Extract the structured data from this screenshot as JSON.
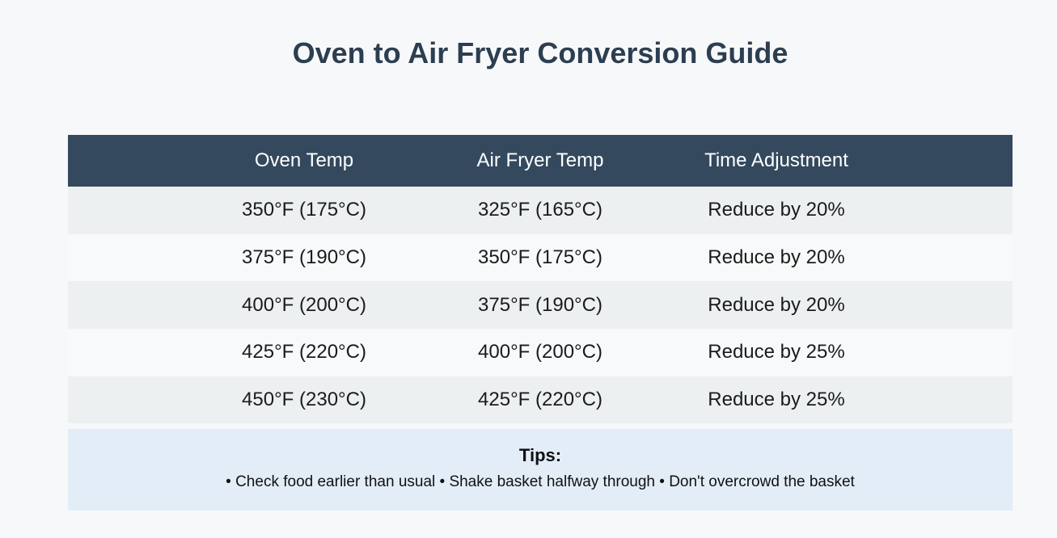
{
  "page": {
    "title": "Oven to Air Fryer Conversion Guide"
  },
  "table": {
    "headers": [
      "Oven Temp",
      "Air Fryer Temp",
      "Time Adjustment"
    ],
    "rows": [
      [
        "350°F (175°C)",
        "325°F (165°C)",
        "Reduce by 20%"
      ],
      [
        "375°F (190°C)",
        "350°F (175°C)",
        "Reduce by 20%"
      ],
      [
        "400°F (200°C)",
        "375°F (190°C)",
        "Reduce by 20%"
      ],
      [
        "425°F (220°C)",
        "400°F (200°C)",
        "Reduce by 25%"
      ],
      [
        "450°F (230°C)",
        "425°F (220°C)",
        "Reduce by 25%"
      ]
    ]
  },
  "tips": {
    "heading": "Tips:",
    "text": "• Check food earlier than usual • Shake basket halfway through • Don't overcrowd the basket"
  },
  "colors": {
    "page_bg": "#f7f8fa",
    "header_bg": "#34495e",
    "header_text": "#ffffff",
    "row_odd_bg": "#ecf0f1",
    "row_even_bg": "#f8f9fa",
    "title_text": "#2c3e50",
    "tips_bg": "#e2edf8",
    "body_text": "#1b1b1b"
  }
}
